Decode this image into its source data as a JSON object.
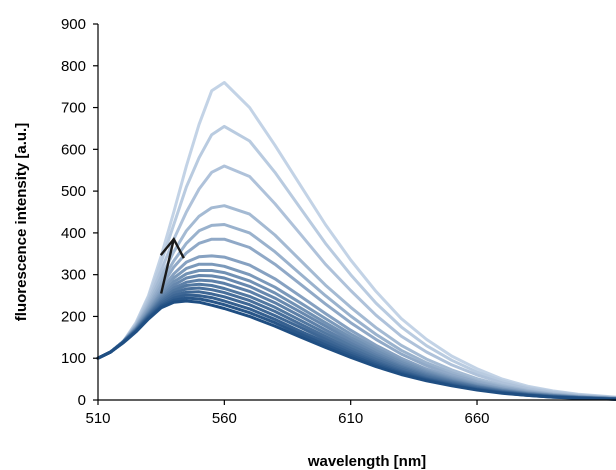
{
  "chart_data": {
    "type": "line",
    "title": "",
    "xlabel": "wavelength [nm]",
    "ylabel": "fluorescence intensity [a.u.]",
    "xlim": [
      510,
      715
    ],
    "ylim": [
      0,
      900
    ],
    "x_ticks": [
      510,
      560,
      610,
      660
    ],
    "y_ticks": [
      0,
      100,
      200,
      300,
      400,
      500,
      600,
      700,
      800,
      900
    ],
    "grid": false,
    "legend": "none",
    "annotation": "arrow-up",
    "color_gradient": {
      "from": "#c3d3e6",
      "to": "#1f4e82"
    },
    "x": [
      510,
      515,
      520,
      525,
      530,
      535,
      540,
      545,
      550,
      555,
      560,
      570,
      580,
      590,
      600,
      610,
      620,
      630,
      640,
      650,
      660,
      670,
      680,
      690,
      700,
      715
    ],
    "series": [
      {
        "values": [
          100,
          115,
          140,
          185,
          250,
          345,
          450,
          560,
          660,
          740,
          760,
          700,
          610,
          515,
          420,
          335,
          260,
          195,
          145,
          105,
          75,
          50,
          33,
          22,
          14,
          7
        ]
      },
      {
        "values": [
          100,
          115,
          140,
          182,
          245,
          330,
          420,
          510,
          580,
          635,
          655,
          620,
          545,
          460,
          375,
          300,
          232,
          175,
          130,
          95,
          67,
          46,
          30,
          20,
          13,
          6
        ]
      },
      {
        "values": [
          100,
          115,
          140,
          180,
          238,
          310,
          385,
          450,
          505,
          545,
          560,
          535,
          470,
          398,
          325,
          262,
          203,
          153,
          115,
          84,
          60,
          41,
          27,
          18,
          11,
          5
        ]
      },
      {
        "values": [
          100,
          115,
          140,
          178,
          232,
          295,
          355,
          405,
          440,
          460,
          465,
          445,
          395,
          335,
          275,
          222,
          173,
          131,
          98,
          72,
          51,
          35,
          23,
          15,
          10,
          5
        ]
      },
      {
        "values": [
          100,
          115,
          140,
          176,
          226,
          282,
          333,
          375,
          405,
          418,
          420,
          400,
          355,
          302,
          250,
          201,
          157,
          119,
          89,
          65,
          46,
          32,
          21,
          14,
          9,
          4
        ]
      },
      {
        "values": [
          100,
          115,
          140,
          175,
          222,
          272,
          318,
          352,
          375,
          385,
          385,
          365,
          325,
          278,
          230,
          185,
          145,
          110,
          82,
          60,
          43,
          30,
          20,
          13,
          8,
          4
        ]
      },
      {
        "values": [
          100,
          115,
          140,
          174,
          218,
          263,
          302,
          330,
          343,
          345,
          342,
          323,
          290,
          249,
          207,
          167,
          131,
          100,
          74,
          55,
          39,
          27,
          18,
          12,
          8,
          4
        ]
      },
      {
        "values": [
          100,
          115,
          140,
          172,
          214,
          257,
          292,
          315,
          325,
          325,
          320,
          300,
          270,
          233,
          195,
          158,
          124,
          94,
          70,
          52,
          37,
          26,
          17,
          11,
          7,
          3
        ]
      },
      {
        "values": [
          100,
          115,
          140,
          171,
          211,
          252,
          283,
          302,
          310,
          310,
          305,
          285,
          256,
          221,
          185,
          150,
          118,
          90,
          67,
          49,
          35,
          24,
          16,
          11,
          7,
          3
        ]
      },
      {
        "values": [
          100,
          115,
          140,
          170,
          208,
          247,
          275,
          292,
          298,
          297,
          292,
          272,
          244,
          211,
          177,
          143,
          112,
          85,
          64,
          47,
          33,
          23,
          15,
          10,
          7,
          3
        ]
      },
      {
        "values": [
          100,
          115,
          140,
          169,
          206,
          243,
          268,
          282,
          287,
          285,
          279,
          260,
          233,
          201,
          168,
          136,
          107,
          81,
          61,
          45,
          32,
          22,
          15,
          10,
          6,
          3
        ]
      },
      {
        "values": [
          100,
          115,
          140,
          168,
          204,
          239,
          262,
          274,
          277,
          274,
          267,
          248,
          222,
          191,
          160,
          130,
          102,
          78,
          58,
          43,
          31,
          21,
          14,
          9,
          6,
          3
        ]
      },
      {
        "values": [
          100,
          115,
          139,
          167,
          202,
          235,
          256,
          266,
          268,
          264,
          257,
          238,
          212,
          182,
          152,
          123,
          97,
          74,
          55,
          41,
          29,
          20,
          13,
          9,
          6,
          3
        ]
      },
      {
        "values": [
          100,
          115,
          139,
          166,
          200,
          231,
          250,
          258,
          259,
          254,
          247,
          228,
          202,
          174,
          145,
          117,
          92,
          70,
          52,
          39,
          28,
          19,
          13,
          8,
          5,
          2
        ]
      },
      {
        "values": [
          100,
          115,
          138,
          165,
          198,
          227,
          244,
          251,
          250,
          245,
          237,
          218,
          193,
          165,
          138,
          112,
          88,
          67,
          50,
          37,
          26,
          18,
          12,
          8,
          5,
          2
        ]
      },
      {
        "values": [
          100,
          115,
          138,
          164,
          196,
          224,
          239,
          244,
          242,
          236,
          228,
          209,
          185,
          158,
          132,
          107,
          84,
          64,
          48,
          35,
          25,
          17,
          11,
          7,
          5,
          2
        ]
      },
      {
        "values": [
          100,
          115,
          137,
          163,
          194,
          221,
          234,
          237,
          234,
          227,
          219,
          200,
          177,
          151,
          126,
          102,
          80,
          61,
          46,
          34,
          24,
          16,
          11,
          7,
          4,
          2
        ]
      }
    ]
  }
}
